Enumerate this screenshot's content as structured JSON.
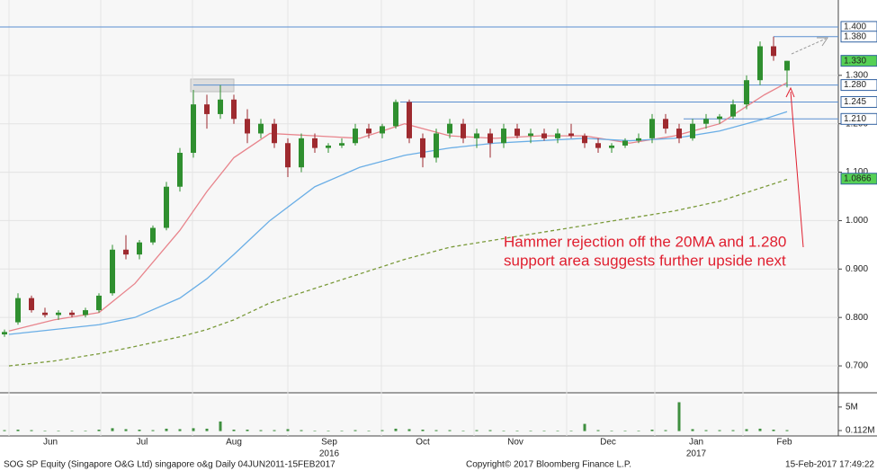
{
  "chart_data": {
    "type": "candlestick",
    "xlim": [
      -1,
      185.4
    ],
    "xticks": [
      {
        "value": 10.2,
        "label": "Jun"
      },
      {
        "value": 30.6,
        "label": "Jul"
      },
      {
        "value": 51,
        "label": "Aug"
      },
      {
        "value": 72.2,
        "label": "Sep"
      },
      {
        "value": 93,
        "label": "Oct"
      },
      {
        "value": 113.6,
        "label": "Nov"
      },
      {
        "value": 134.2,
        "label": "Dec"
      },
      {
        "value": 153.8,
        "label": "Jan"
      },
      {
        "value": 173.4,
        "label": "Feb"
      }
    ],
    "year_labels": [
      {
        "value": 72.2,
        "label": "2016"
      },
      {
        "value": 153.8,
        "label": "2017"
      }
    ],
    "ylim": [
      0.6444,
      1.4556
    ],
    "yticks": [
      {
        "value": 0.7,
        "label": "0.700"
      },
      {
        "value": 0.8,
        "label": "0.800"
      },
      {
        "value": 0.9,
        "label": "0.900"
      },
      {
        "value": 1.0,
        "label": "1.000"
      },
      {
        "value": 1.1,
        "label": "1.100"
      },
      {
        "value": 1.2,
        "label": "1.200"
      },
      {
        "value": 1.3,
        "label": "1.300"
      }
    ],
    "up_color": "#2f8f2f",
    "down_color": "#9e2a2f",
    "x": [
      0,
      3,
      6,
      9,
      12,
      15,
      18,
      21,
      24,
      27,
      30,
      33,
      36,
      39,
      42,
      45,
      48,
      51,
      54,
      57,
      60,
      63,
      66,
      69,
      72,
      75,
      78,
      81,
      84,
      87,
      90,
      93,
      96,
      99,
      102,
      105,
      108,
      111,
      114,
      117,
      120,
      123,
      126,
      129,
      132,
      135,
      138,
      141,
      144,
      147,
      150,
      153,
      156,
      159,
      162,
      165,
      168,
      171,
      174
    ],
    "open": [
      0.765,
      0.79,
      0.84,
      0.81,
      0.805,
      0.81,
      0.805,
      0.815,
      0.85,
      0.94,
      0.93,
      0.955,
      0.985,
      1.07,
      1.14,
      1.24,
      1.22,
      1.25,
      1.21,
      1.18,
      1.2,
      1.16,
      1.11,
      1.17,
      1.15,
      1.155,
      1.16,
      1.19,
      1.18,
      1.195,
      1.245,
      1.17,
      1.13,
      1.18,
      1.2,
      1.17,
      1.18,
      1.16,
      1.19,
      1.175,
      1.18,
      1.17,
      1.18,
      1.175,
      1.16,
      1.15,
      1.155,
      1.165,
      1.17,
      1.21,
      1.19,
      1.17,
      1.2,
      1.21,
      1.215,
      1.24,
      1.29,
      1.36,
      1.31
    ],
    "high": [
      0.775,
      0.85,
      0.845,
      0.82,
      0.815,
      0.815,
      0.82,
      0.85,
      0.95,
      0.97,
      0.96,
      0.99,
      1.08,
      1.15,
      1.27,
      1.26,
      1.28,
      1.26,
      1.23,
      1.21,
      1.21,
      1.17,
      1.18,
      1.18,
      1.16,
      1.17,
      1.2,
      1.2,
      1.2,
      1.25,
      1.25,
      1.18,
      1.19,
      1.21,
      1.21,
      1.19,
      1.19,
      1.2,
      1.2,
      1.19,
      1.19,
      1.19,
      1.2,
      1.18,
      1.17,
      1.16,
      1.17,
      1.18,
      1.22,
      1.22,
      1.2,
      1.21,
      1.22,
      1.22,
      1.25,
      1.3,
      1.37,
      1.38,
      1.33
    ],
    "low": [
      0.76,
      0.785,
      0.81,
      0.8,
      0.795,
      0.8,
      0.8,
      0.81,
      0.845,
      0.92,
      0.92,
      0.95,
      0.98,
      1.06,
      1.13,
      1.19,
      1.21,
      1.2,
      1.16,
      1.17,
      1.15,
      1.09,
      1.1,
      1.14,
      1.14,
      1.15,
      1.155,
      1.17,
      1.17,
      1.19,
      1.16,
      1.11,
      1.12,
      1.17,
      1.16,
      1.15,
      1.13,
      1.15,
      1.17,
      1.16,
      1.165,
      1.16,
      1.17,
      1.15,
      1.14,
      1.14,
      1.15,
      1.16,
      1.16,
      1.18,
      1.16,
      1.165,
      1.19,
      1.2,
      1.21,
      1.23,
      1.28,
      1.33,
      1.275
    ],
    "close": [
      0.77,
      0.84,
      0.815,
      0.805,
      0.81,
      0.805,
      0.815,
      0.845,
      0.94,
      0.93,
      0.955,
      0.985,
      1.07,
      1.14,
      1.24,
      1.22,
      1.25,
      1.21,
      1.18,
      1.2,
      1.16,
      1.11,
      1.17,
      1.15,
      1.155,
      1.16,
      1.19,
      1.18,
      1.195,
      1.245,
      1.17,
      1.13,
      1.18,
      1.2,
      1.17,
      1.18,
      1.16,
      1.19,
      1.175,
      1.18,
      1.17,
      1.18,
      1.175,
      1.16,
      1.15,
      1.155,
      1.165,
      1.17,
      1.21,
      1.19,
      1.17,
      1.2,
      1.21,
      1.215,
      1.24,
      1.29,
      1.36,
      1.34,
      1.33
    ],
    "ma_x": [
      1,
      11,
      21,
      29,
      39,
      45,
      51,
      59,
      69,
      79,
      89,
      99,
      109,
      119,
      129,
      139,
      149,
      159,
      169,
      174
    ],
    "moving_averages": [
      {
        "color": "#e8848c",
        "dash": false,
        "values": [
          0.772,
          0.795,
          0.81,
          0.87,
          0.98,
          1.06,
          1.13,
          1.18,
          1.175,
          1.17,
          1.2,
          1.175,
          1.17,
          1.175,
          1.175,
          1.16,
          1.175,
          1.2,
          1.26,
          1.285
        ]
      },
      {
        "color": "#6aaee6",
        "dash": false,
        "values": [
          0.765,
          0.775,
          0.785,
          0.8,
          0.84,
          0.88,
          0.93,
          1.0,
          1.07,
          1.11,
          1.135,
          1.15,
          1.16,
          1.165,
          1.17,
          1.165,
          1.17,
          1.185,
          1.21,
          1.225
        ]
      },
      {
        "color": "#7a9a3a",
        "dash": true,
        "values": [
          0.7,
          0.71,
          0.725,
          0.74,
          0.76,
          0.775,
          0.795,
          0.83,
          0.86,
          0.89,
          0.92,
          0.945,
          0.96,
          0.975,
          0.99,
          1.005,
          1.02,
          1.04,
          1.07,
          1.085
        ]
      }
    ],
    "volume": [
      0.2,
      0.3,
      0.2,
      0.1,
      0.1,
      0.1,
      0.1,
      0.3,
      0.6,
      0.4,
      0.3,
      0.2,
      0.5,
      0.4,
      0.6,
      0.5,
      2.0,
      0.3,
      0.3,
      0.2,
      0.2,
      0.4,
      0.2,
      0.1,
      0.1,
      0.1,
      0.2,
      0.1,
      0.2,
      0.5,
      0.4,
      0.3,
      0.2,
      0.2,
      0.1,
      0.2,
      0.2,
      0.1,
      0.1,
      0.1,
      0.1,
      0.1,
      0.1,
      1.5,
      0.2,
      0.1,
      0.1,
      0.1,
      0.3,
      0.2,
      6.0,
      0.4,
      0.2,
      0.2,
      0.2,
      0.4,
      0.5,
      0.3,
      0.2
    ],
    "volume_color": "#3f8f3f",
    "volume_ylim": [
      0,
      7.4
    ],
    "volume_ticks": [
      {
        "value": 5,
        "label": "5M"
      },
      {
        "value": 0.112,
        "label": "0.112M"
      }
    ],
    "levels": [
      {
        "value": 1.4,
        "x_start": -1
      },
      {
        "value": 1.28,
        "x_start": 42
      },
      {
        "value": 1.245,
        "x_start": 88
      },
      {
        "value": 1.21,
        "x_start": 151
      },
      {
        "value": 1.38,
        "x_start": 171
      }
    ],
    "price_labels": [
      {
        "value": 1.4,
        "label": "1.400",
        "color": "#ffffff"
      },
      {
        "value": 1.38,
        "label": "1.380",
        "color": "#ffffff"
      },
      {
        "value": 1.33,
        "label": "1.330",
        "color": "#55d055"
      },
      {
        "value": 1.28,
        "label": "1.280",
        "color": "#ffffff"
      },
      {
        "value": 1.245,
        "label": "1.245",
        "color": "#ffffff"
      },
      {
        "value": 1.21,
        "label": "1.210",
        "color": "#ffffff"
      },
      {
        "value": 1.0866,
        "label": "1.0866",
        "color": "#55d055"
      }
    ],
    "annotation": [
      "Hammer rejection off the 20MA and 1.280",
      "support area  suggests further upside next"
    ],
    "footer": {
      "left": "SOG SP Equity (Singapore O&G Ltd) singapore o&g  Daily 04JUN2011-15FEB2017",
      "center": "Copyright© 2017 Bloomberg Finance L.P.",
      "right": "15-Feb-2017 17:49:22"
    }
  }
}
